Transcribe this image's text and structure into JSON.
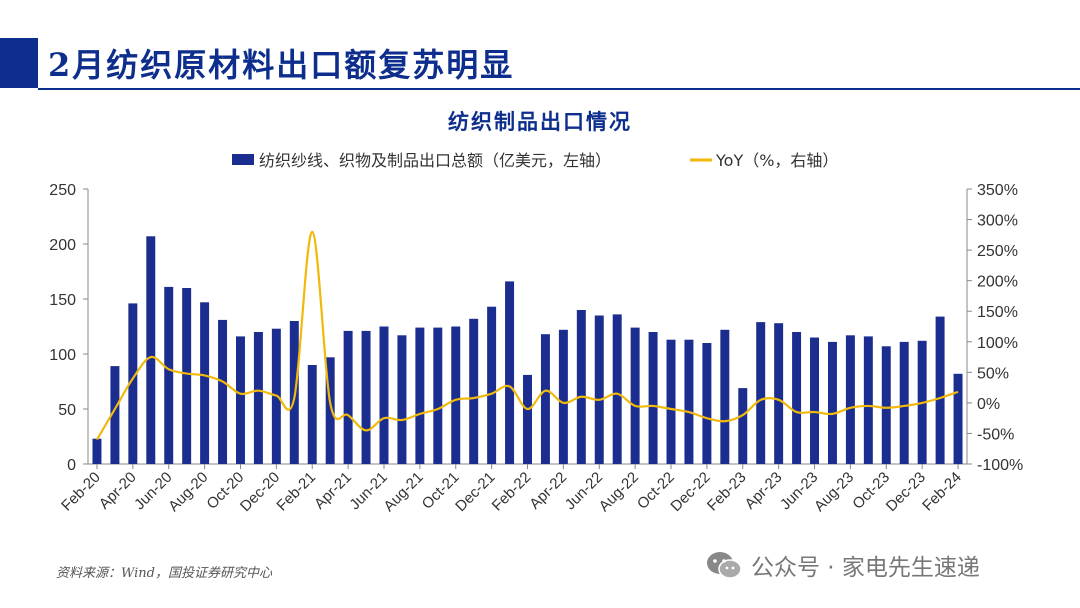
{
  "header": {
    "title": "2月纺织原材料出口额复苏明显"
  },
  "source": "资料来源：Wind，国投证券研究中心",
  "watermark": {
    "text": "公众号 · 家电先生速递",
    "icon": "wechat-icon"
  },
  "colors": {
    "bar": "#1b2d8f",
    "line": "#f0b90b",
    "title": "#0d2e8c"
  },
  "chart_data": {
    "type": "bar",
    "title": "纺织制品出口情况",
    "legend_position": "top",
    "grid": false,
    "x_tick_labels": [
      "Feb-20",
      "Apr-20",
      "Jun-20",
      "Aug-20",
      "Oct-20",
      "Dec-20",
      "Feb-21",
      "Apr-21",
      "Jun-21",
      "Aug-21",
      "Oct-21",
      "Dec-21",
      "Feb-22",
      "Apr-22",
      "Jun-22",
      "Aug-22",
      "Oct-22",
      "Dec-22",
      "Feb-23",
      "Apr-23",
      "Jun-23",
      "Aug-23",
      "Oct-23",
      "Dec-23",
      "Feb-24"
    ],
    "categories": [
      "Feb-20",
      "Mar-20",
      "Apr-20",
      "May-20",
      "Jun-20",
      "Jul-20",
      "Aug-20",
      "Sep-20",
      "Oct-20",
      "Nov-20",
      "Dec-20",
      "Jan-21",
      "Feb-21",
      "Mar-21",
      "Apr-21",
      "May-21",
      "Jun-21",
      "Jul-21",
      "Aug-21",
      "Sep-21",
      "Oct-21",
      "Nov-21",
      "Dec-21",
      "Jan-22",
      "Feb-22",
      "Mar-22",
      "Apr-22",
      "May-22",
      "Jun-22",
      "Jul-22",
      "Aug-22",
      "Sep-22",
      "Oct-22",
      "Nov-22",
      "Dec-22",
      "Jan-23",
      "Feb-23",
      "Mar-23",
      "Apr-23",
      "May-23",
      "Jun-23",
      "Jul-23",
      "Aug-23",
      "Sep-23",
      "Oct-23",
      "Nov-23",
      "Dec-23",
      "Jan-24",
      "Feb-24"
    ],
    "y_left": {
      "ylim": [
        0,
        250
      ],
      "ticks": [
        "0",
        "50",
        "100",
        "150",
        "200",
        "250"
      ]
    },
    "y_right": {
      "ylim": [
        -100,
        350
      ],
      "ticks": [
        "-100%",
        "-50%",
        "0%",
        "50%",
        "100%",
        "150%",
        "200%",
        "250%",
        "300%",
        "350%"
      ]
    },
    "series": [
      {
        "name": "纺织纱线、织物及制品出口总额（亿美元，左轴）",
        "type": "bar",
        "axis": "left",
        "values": [
          23,
          89,
          146,
          207,
          161,
          160,
          147,
          131,
          116,
          120,
          123,
          130,
          90,
          97,
          121,
          121,
          125,
          117,
          124,
          124,
          125,
          132,
          143,
          166,
          81,
          118,
          122,
          140,
          135,
          136,
          124,
          120,
          113,
          113,
          110,
          122,
          69,
          129,
          128,
          120,
          115,
          111,
          117,
          116,
          107,
          111,
          112,
          134,
          82
        ]
      },
      {
        "name": "YoY（%，右轴）",
        "type": "line",
        "axis": "right",
        "values": [
          -60,
          -10,
          40,
          75,
          55,
          48,
          45,
          35,
          15,
          20,
          12,
          8,
          280,
          0,
          -20,
          -45,
          -25,
          -28,
          -18,
          -10,
          5,
          8,
          15,
          27,
          -10,
          20,
          0,
          10,
          5,
          15,
          -5,
          -5,
          -10,
          -15,
          -25,
          -30,
          -20,
          5,
          5,
          -15,
          -15,
          -18,
          -8,
          -5,
          -8,
          -5,
          0,
          8,
          18
        ]
      }
    ]
  }
}
